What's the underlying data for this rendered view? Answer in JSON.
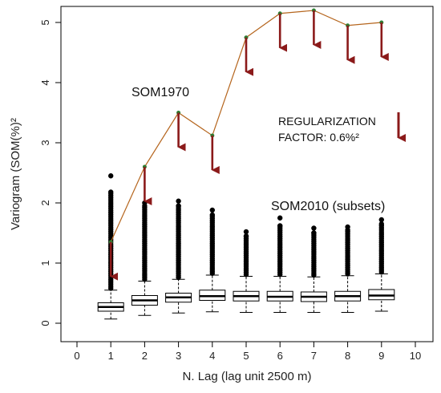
{
  "chart_data": {
    "type": "boxplot-line",
    "xlabel": "N. Lag (lag unit 2500 m)",
    "ylabel": "Variogram (SOM(%)²",
    "xlim": [
      0,
      10
    ],
    "ylim": [
      0,
      5.2
    ],
    "xticks": [
      "0",
      "1",
      "2",
      "3",
      "4",
      "5",
      "6",
      "7",
      "8",
      "9",
      "10"
    ],
    "yticks": [
      "0",
      "1",
      "2",
      "3",
      "4",
      "5"
    ],
    "grid": false,
    "series": [
      {
        "name": "SOM1970",
        "type": "line",
        "color": "#b5651d",
        "x": [
          1,
          2,
          3,
          4,
          5,
          6,
          7,
          8,
          9
        ],
        "y": [
          1.35,
          2.6,
          3.5,
          3.12,
          4.75,
          5.15,
          5.2,
          4.95,
          5.0
        ]
      },
      {
        "name": "SOM2010 (subsets)",
        "type": "boxplot",
        "x": [
          1,
          2,
          3,
          4,
          5,
          6,
          7,
          8,
          9
        ],
        "q1": [
          0.2,
          0.3,
          0.35,
          0.38,
          0.37,
          0.37,
          0.36,
          0.37,
          0.39
        ],
        "median": [
          0.27,
          0.38,
          0.43,
          0.45,
          0.45,
          0.44,
          0.44,
          0.45,
          0.46
        ],
        "q3": [
          0.34,
          0.46,
          0.5,
          0.55,
          0.53,
          0.53,
          0.52,
          0.53,
          0.56
        ],
        "whisker_low": [
          0.07,
          0.13,
          0.17,
          0.19,
          0.18,
          0.18,
          0.18,
          0.18,
          0.2
        ],
        "whisker_high": [
          0.55,
          0.7,
          0.73,
          0.8,
          0.78,
          0.78,
          0.77,
          0.79,
          0.82
        ],
        "outlier_max": [
          2.45,
          2.0,
          2.03,
          1.88,
          1.52,
          1.75,
          1.58,
          1.6,
          1.72
        ],
        "outlier_isolated": [
          [
            2.18,
            2.45
          ],
          [
            1.95,
            2.0
          ],
          [
            1.95,
            2.03
          ],
          [
            1.8,
            1.88
          ],
          [
            1.45,
            1.52
          ],
          [
            1.62,
            1.75
          ],
          [
            1.5,
            1.58
          ],
          [
            1.55,
            1.6
          ],
          [
            1.65,
            1.72
          ]
        ]
      }
    ],
    "arrows": {
      "color": "#8b1a1a",
      "length": 0.6,
      "x": [
        1,
        2,
        3,
        4,
        5,
        6,
        7,
        8,
        9
      ]
    },
    "annotations": [
      {
        "text": "SOM1970"
      },
      {
        "text": "REGULARIZATION"
      },
      {
        "text": "FACTOR: 0.6%²"
      },
      {
        "text": "SOM2010 (subsets)"
      }
    ]
  }
}
